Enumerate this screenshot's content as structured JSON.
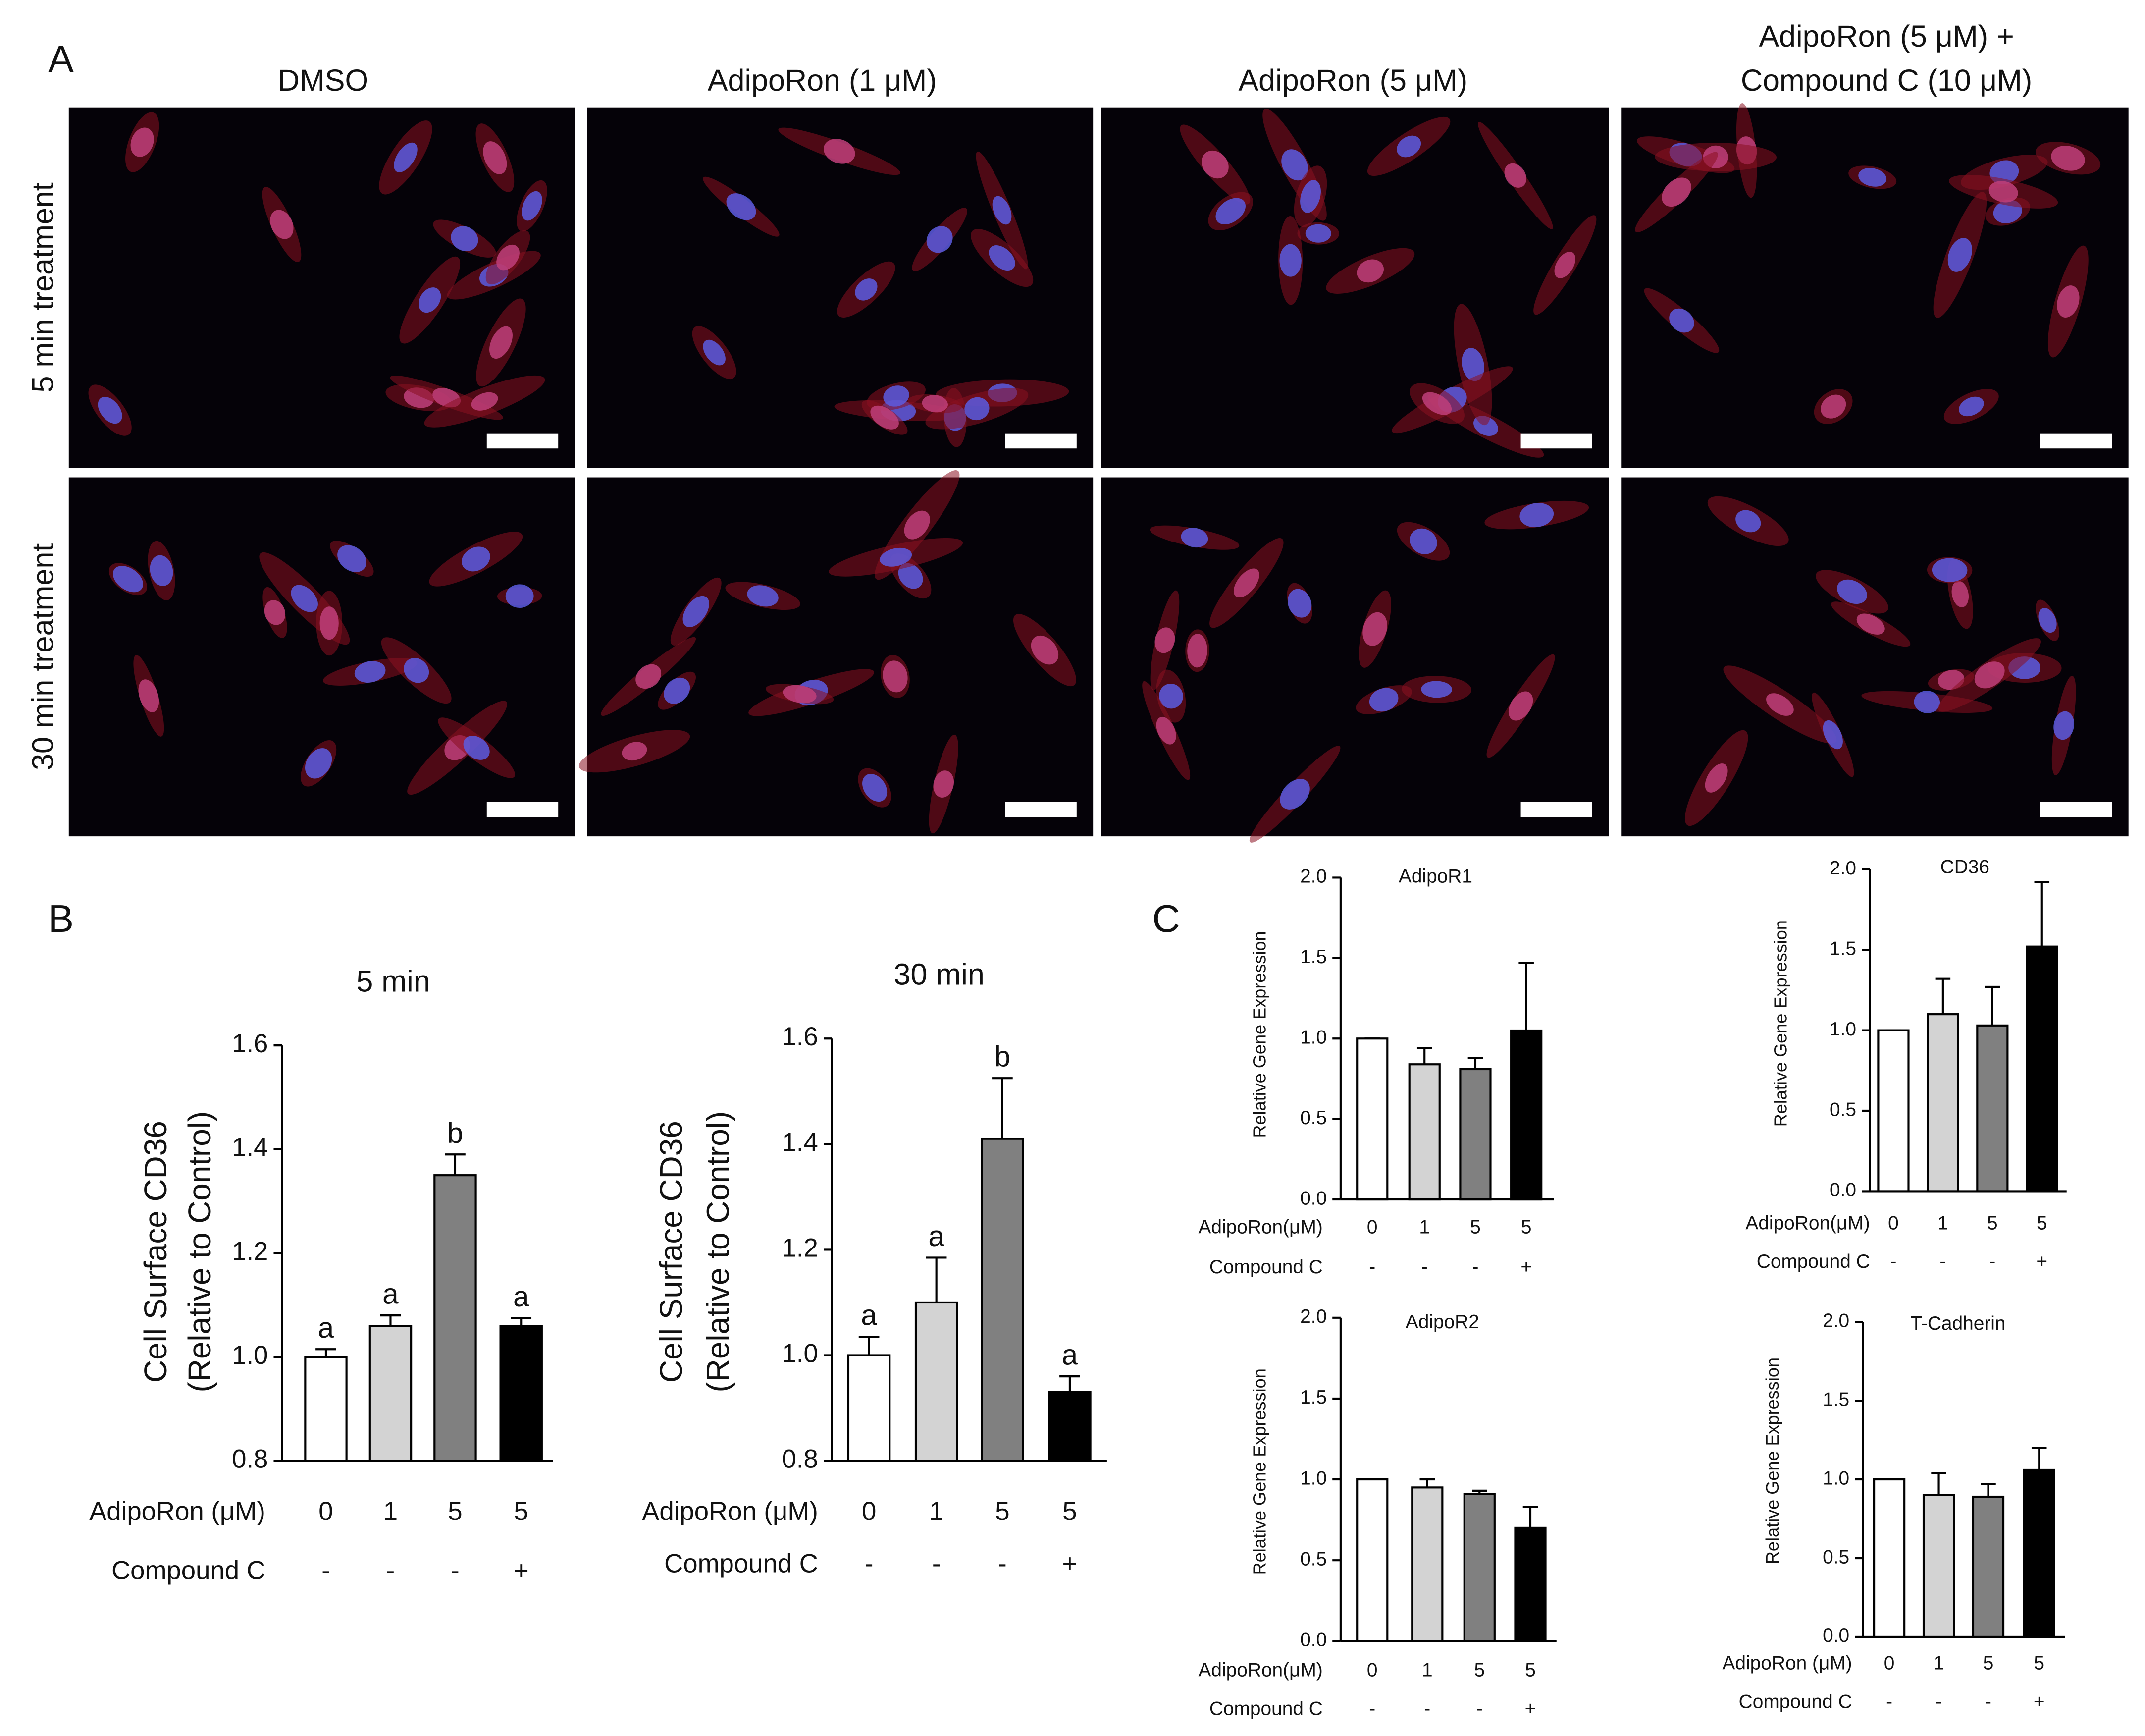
{
  "panel_labels": [
    "A",
    "B",
    "C"
  ],
  "microscopy": {
    "columns": [
      [
        "DMSO"
      ],
      [
        "AdipoRon (1 μM)"
      ],
      [
        "AdipoRon (5 μM)"
      ],
      [
        "AdipoRon (5 μM) +",
        "Compound C (10 μM)"
      ]
    ],
    "rows": [
      "5 min treatment",
      "30 min treatment"
    ]
  },
  "chart_data": [
    {
      "type": "bar",
      "title": "5 min",
      "ylabel": [
        "Cell Surface CD36",
        "(Relative to Control)"
      ],
      "category_label": "AdipoRon (μM)",
      "categories": [
        "0",
        "1",
        "5",
        "5"
      ],
      "compound_label": "Compound C",
      "compound": [
        "-",
        "-",
        "-",
        "+"
      ],
      "values": [
        1.0,
        1.06,
        1.35,
        1.06
      ],
      "errors": [
        0.015,
        0.02,
        0.04,
        0.015
      ],
      "annotations": [
        "a",
        "a",
        "b",
        "a"
      ],
      "colors": [
        "#ffffff",
        "#d3d3d3",
        "#808080",
        "#000000"
      ],
      "ylim": [
        0.8,
        1.6
      ],
      "yticks": [
        0.8,
        {
          "value": 1,
          "label": "1.0"
        },
        1.2,
        1.4,
        1.6
      ]
    },
    {
      "type": "bar",
      "title": "30 min",
      "ylabel": [
        "Cell Surface CD36",
        "(Relative to Control)"
      ],
      "category_label": "AdipoRon (μM)",
      "categories": [
        "0",
        "1",
        "5",
        "5"
      ],
      "compound_label": "Compound C",
      "compound": [
        "-",
        "-",
        "-",
        "+"
      ],
      "values": [
        1.0,
        1.1,
        1.41,
        0.93
      ],
      "errors": [
        0.035,
        0.085,
        0.115,
        0.03
      ],
      "annotations": [
        "a",
        "a",
        "b",
        "a"
      ],
      "colors": [
        "#ffffff",
        "#d3d3d3",
        "#808080",
        "#000000"
      ],
      "ylim": [
        0.8,
        1.6
      ],
      "yticks": [
        0.8,
        {
          "value": 1,
          "label": "1.0"
        },
        1.2,
        1.4,
        1.6
      ]
    },
    {
      "type": "bar",
      "title": "AdipoR1",
      "ylabel": [
        "Relative Gene Expression"
      ],
      "category_label": "AdipoRon(μM)",
      "categories": [
        "0",
        "1",
        "5",
        "5"
      ],
      "compound_label": "Compound C",
      "compound": [
        "-",
        "-",
        "-",
        "+"
      ],
      "values": [
        1.0,
        0.84,
        0.81,
        1.05
      ],
      "errors": [
        0,
        0.1,
        0.07,
        0.42
      ],
      "colors": [
        "#ffffff",
        "#d3d3d3",
        "#808080",
        "#000000"
      ],
      "ylim": [
        0,
        2
      ],
      "yticks": [
        {
          "value": 0,
          "label": "0.0"
        },
        0.5,
        {
          "value": 1,
          "label": "1.0"
        },
        1.5,
        {
          "value": 2,
          "label": "2.0"
        }
      ]
    },
    {
      "type": "bar",
      "title": "CD36",
      "ylabel": [
        "Relative Gene Expression"
      ],
      "category_label": "AdipoRon(μM)",
      "categories": [
        "0",
        "1",
        "5",
        "5"
      ],
      "compound_label": "Compound C",
      "compound": [
        "-",
        "-",
        "-",
        "+"
      ],
      "values": [
        1.0,
        1.1,
        1.03,
        1.52
      ],
      "errors": [
        0,
        0.22,
        0.24,
        0.4
      ],
      "colors": [
        "#ffffff",
        "#d3d3d3",
        "#808080",
        "#000000"
      ],
      "ylim": [
        0,
        2
      ],
      "yticks": [
        {
          "value": 0,
          "label": "0.0"
        },
        0.5,
        {
          "value": 1,
          "label": "1.0"
        },
        1.5,
        {
          "value": 2,
          "label": "2.0"
        }
      ]
    },
    {
      "type": "bar",
      "title": "AdipoR2",
      "ylabel": [
        "Relative Gene Expression"
      ],
      "category_label": "AdipoRon(μM)",
      "categories": [
        "0",
        "1",
        "5",
        "5"
      ],
      "compound_label": "Compound C",
      "compound": [
        "-",
        "-",
        "-",
        "+"
      ],
      "values": [
        1.0,
        0.95,
        0.91,
        0.7
      ],
      "errors": [
        0,
        0.05,
        0.02,
        0.13
      ],
      "colors": [
        "#ffffff",
        "#d3d3d3",
        "#808080",
        "#000000"
      ],
      "ylim": [
        0,
        2
      ],
      "yticks": [
        {
          "value": 0,
          "label": "0.0"
        },
        0.5,
        {
          "value": 1,
          "label": "1.0"
        },
        1.5,
        {
          "value": 2,
          "label": "2.0"
        }
      ]
    },
    {
      "type": "bar",
      "title": "T-Cadherin",
      "ylabel": [
        "Relative Gene Expression"
      ],
      "category_label": "AdipoRon (μM)",
      "categories": [
        "0",
        "1",
        "5",
        "5"
      ],
      "compound_label": "Compound C",
      "compound": [
        "-",
        "-",
        "-",
        "+"
      ],
      "values": [
        1.0,
        0.9,
        0.89,
        1.06
      ],
      "errors": [
        0,
        0.14,
        0.08,
        0.14
      ],
      "colors": [
        "#ffffff",
        "#d3d3d3",
        "#808080",
        "#000000"
      ],
      "ylim": [
        0,
        2
      ],
      "yticks": [
        {
          "value": 0,
          "label": "0.0"
        },
        0.5,
        {
          "value": 1,
          "label": "1.0"
        },
        1.5,
        {
          "value": 2,
          "label": "2.0"
        }
      ]
    }
  ]
}
